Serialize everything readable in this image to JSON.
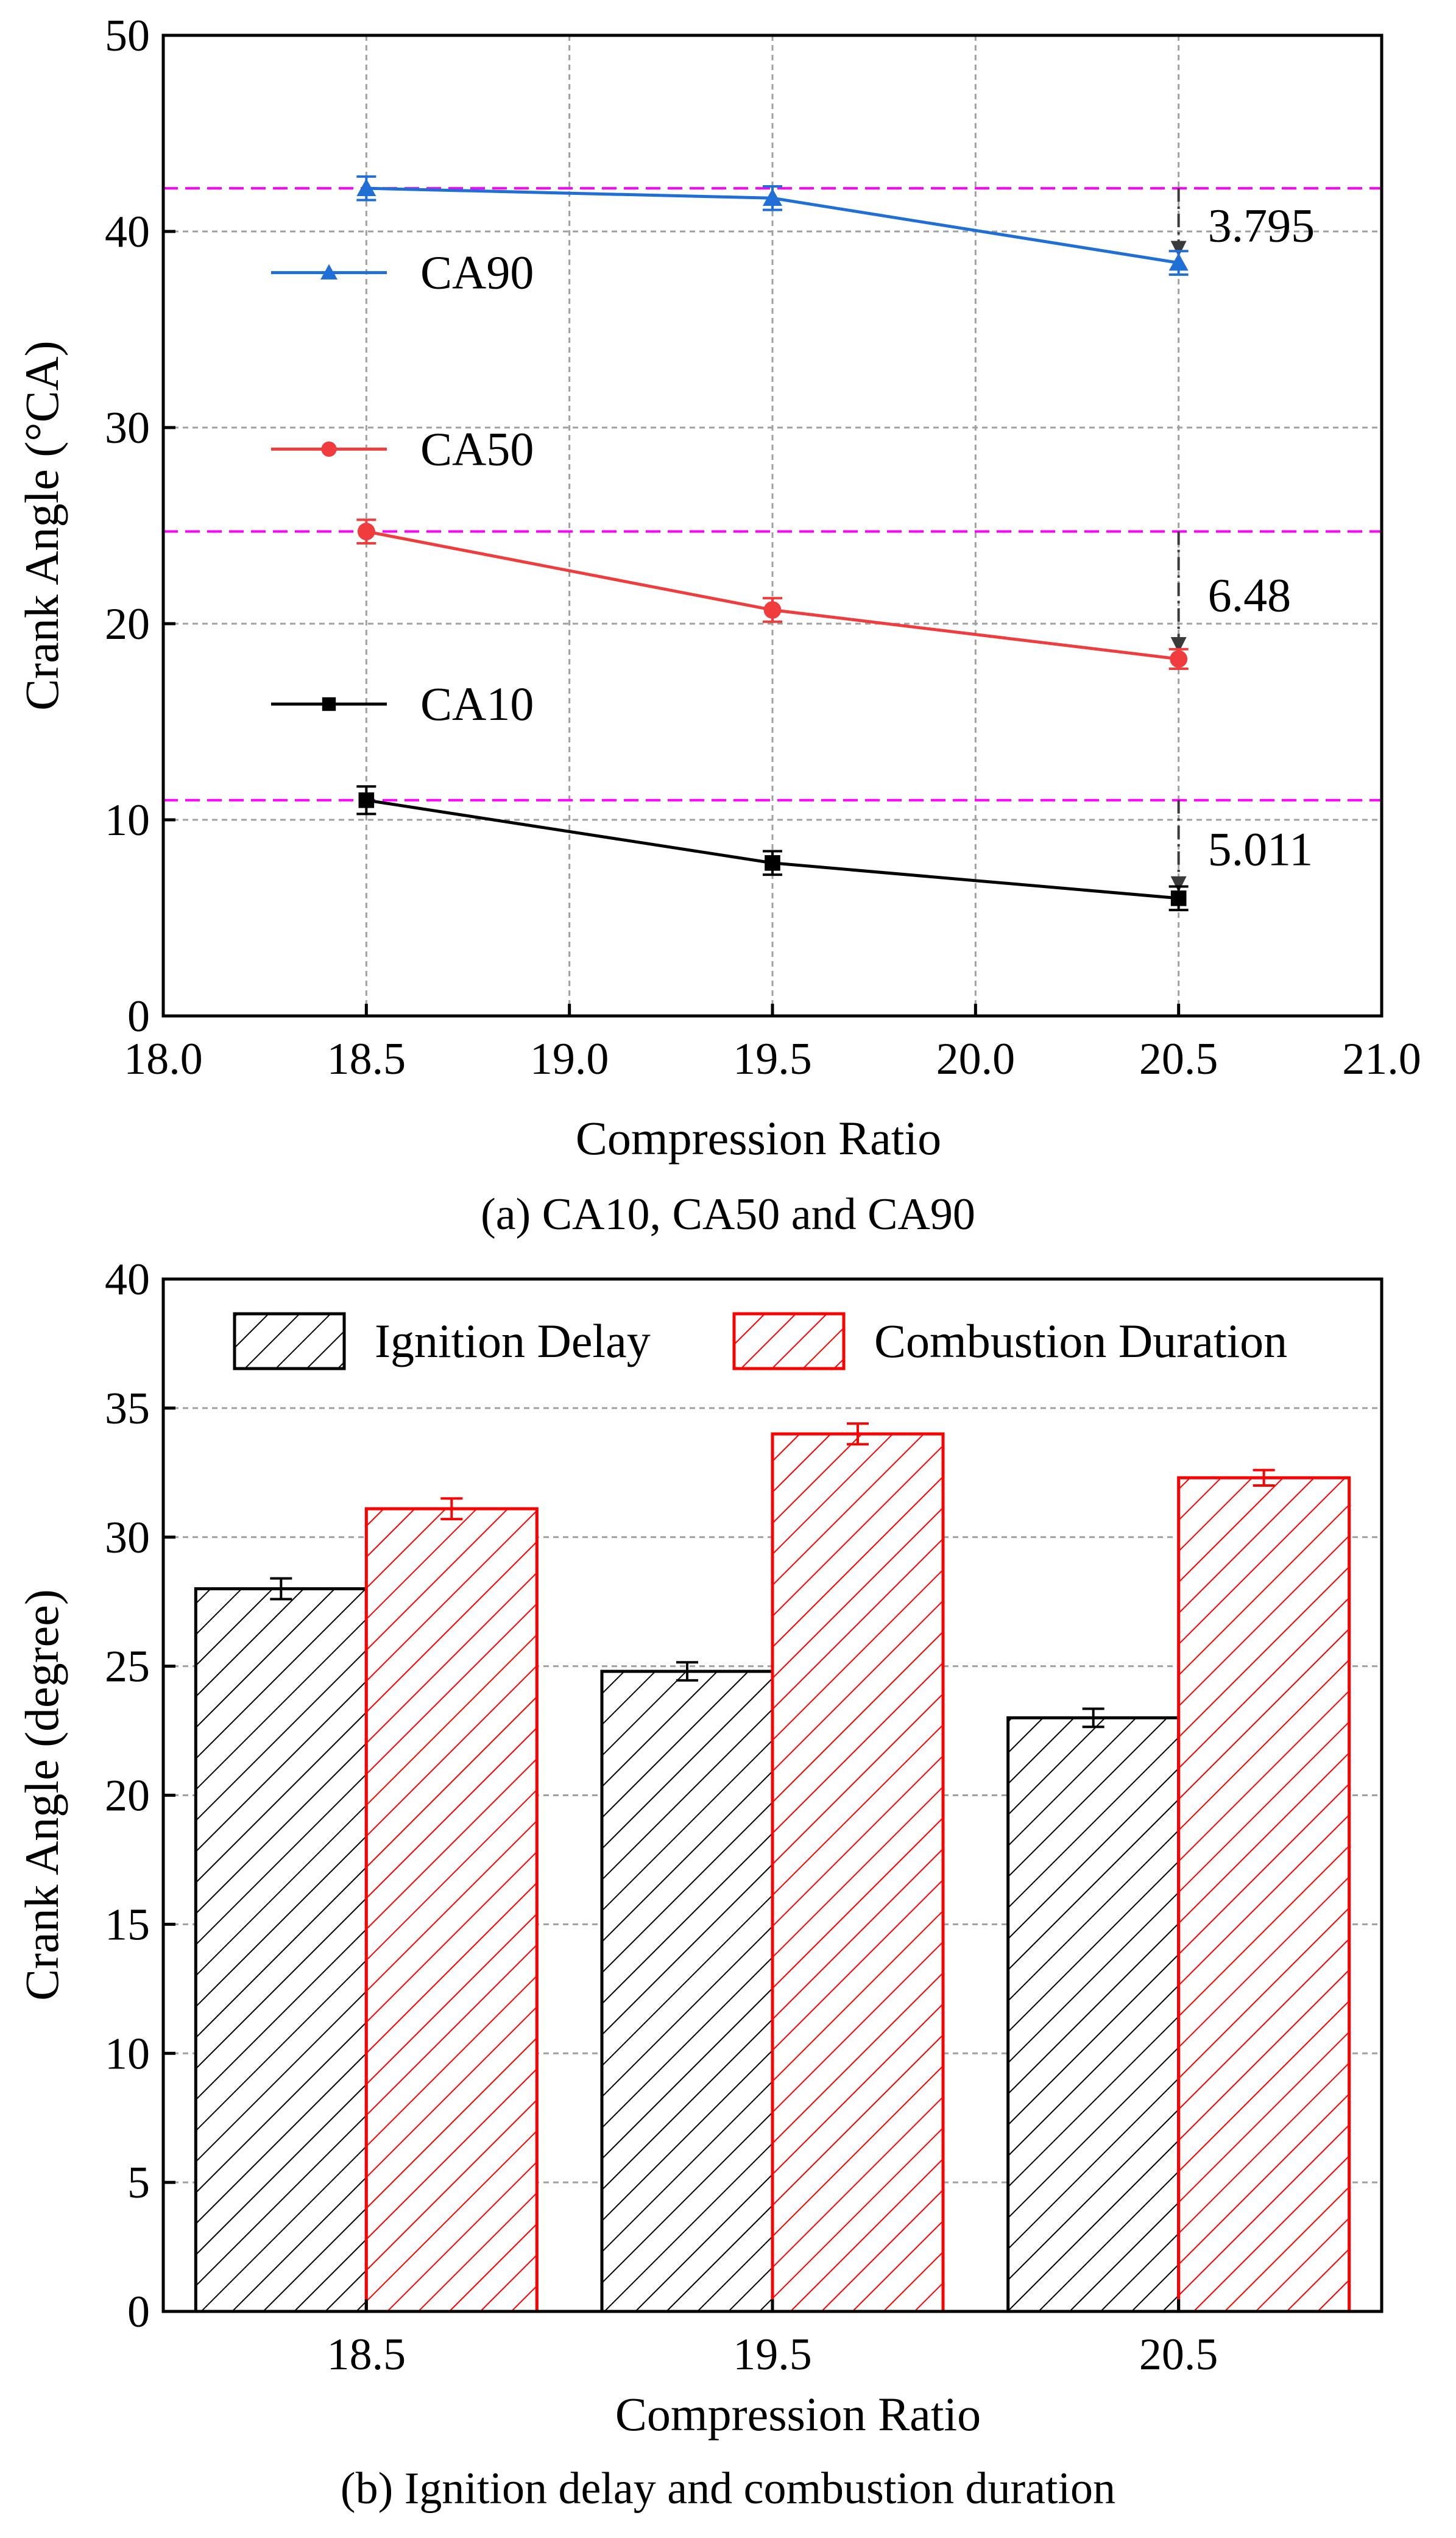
{
  "chart_data": [
    {
      "type": "line",
      "caption": "(a) CA10, CA50 and CA90",
      "xlabel": "Compression Ratio",
      "ylabel": "Crank Angle (°CA)",
      "xlim": [
        18.0,
        21.0
      ],
      "ylim": [
        0,
        50
      ],
      "xticks": [
        "18.0",
        "18.5",
        "19.0",
        "19.5",
        "20.0",
        "20.5",
        "21.0"
      ],
      "yticks": [
        "0",
        "10",
        "20",
        "30",
        "40",
        "50"
      ],
      "grid": true,
      "x": [
        18.5,
        19.5,
        20.5
      ],
      "series": [
        {
          "name": "CA90",
          "marker": "triangle",
          "color": "#1f6fd6",
          "values": [
            42.2,
            41.7,
            38.4
          ],
          "errors": [
            0.6,
            0.6,
            0.6
          ]
        },
        {
          "name": "CA50",
          "marker": "circle",
          "color": "#f03c3c",
          "values": [
            24.7,
            20.7,
            18.2
          ],
          "errors": [
            0.6,
            0.6,
            0.5
          ]
        },
        {
          "name": "CA10",
          "marker": "square",
          "color": "#000000",
          "values": [
            11.0,
            7.8,
            6.0
          ],
          "errors": [
            0.7,
            0.6,
            0.6
          ]
        }
      ],
      "reference_lines": {
        "color": "#ff00ff",
        "y": [
          42.2,
          24.7,
          11.0
        ]
      },
      "annotations": [
        {
          "text": "3.795",
          "x": 20.5,
          "from": 42.2,
          "to": 38.4
        },
        {
          "text": "6.48",
          "x": 20.5,
          "from": 24.7,
          "to": 18.2
        },
        {
          "text": "5.011",
          "x": 20.5,
          "from": 11.0,
          "to": 6.0
        }
      ]
    },
    {
      "type": "bar",
      "caption": "(b) Ignition delay and combustion duration",
      "xlabel": "Compression Ratio",
      "ylabel": "Crank Angle (degree)",
      "ylim": [
        0,
        40
      ],
      "yticks": [
        "0",
        "5",
        "10",
        "15",
        "20",
        "25",
        "30",
        "35",
        "40"
      ],
      "categories": [
        "18.5",
        "19.5",
        "20.5"
      ],
      "grid": true,
      "legend_position": "top",
      "series": [
        {
          "name": "Ignition Delay",
          "color": "#000000",
          "values": [
            28.0,
            24.8,
            23.0
          ],
          "errors": [
            0.4,
            0.35,
            0.35
          ]
        },
        {
          "name": "Combustion Duration",
          "color": "#ff0000",
          "values": [
            31.1,
            34.0,
            32.3
          ],
          "errors": [
            0.4,
            0.4,
            0.3
          ]
        }
      ]
    }
  ]
}
